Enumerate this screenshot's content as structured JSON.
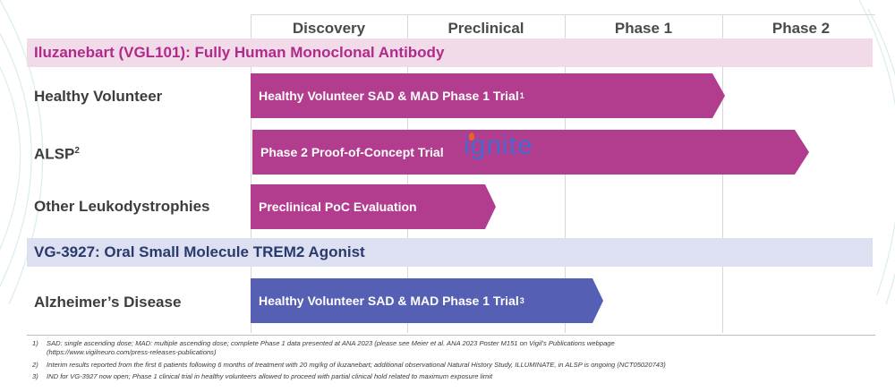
{
  "phases": [
    "Discovery",
    "Preclinical",
    "Phase 1",
    "Phase 2"
  ],
  "sections": [
    {
      "title": "Iluzanebart (VGL101): Fully Human Monoclonal Antibody",
      "rows": [
        {
          "label": "Healthy Volunteer",
          "label_sup": "",
          "bar_text": "Healthy Volunteer SAD & MAD Phase 1 Trial",
          "bar_sup": "1"
        },
        {
          "label": "ALSP",
          "label_sup": "2",
          "bar_text": "Phase 2 Proof-of-Concept Trial",
          "bar_sup": ""
        },
        {
          "label": "Other Leukodystrophies",
          "label_sup": "",
          "bar_text": "Preclinical PoC Evaluation",
          "bar_sup": ""
        }
      ]
    },
    {
      "title": "VG-3927: Oral Small Molecule TREM2 Agonist",
      "rows": [
        {
          "label": "Alzheimer’s Disease",
          "label_sup": "",
          "bar_text": "Healthy Volunteer SAD & MAD Phase 1 Trial",
          "bar_sup": "3"
        }
      ]
    }
  ],
  "ignite_logo": "ignite",
  "footnotes": [
    {
      "num": "1)",
      "line1": "SAD: single ascending dose; MAD: multiple ascending dose; complete Phase 1 data presented at ANA 2023 (please see Meier et al. ANA 2023 Poster M151 on Vigil’s Publications webpage",
      "line2": "(https://www.vigilneuro.com/press-releases-publications)"
    },
    {
      "num": "2)",
      "line1": "Interim results reported from the first 6 patients following 6 months of treatment with 20 mg/kg of iluzanebart; additional observational Natural History Study, ILLUMINATE, in ALSP is ongoing (NCT05020743)",
      "line2": ""
    },
    {
      "num": "3)",
      "line1": "IND for VG-3927 now open; Phase 1 clinical trial in healthy volunteers allowed to proceed with partial clinical hold related to maximum exposure limit",
      "line2": ""
    }
  ],
  "colors": {
    "magenta_bar": "#b23c8e",
    "blue_bar": "#5560b5",
    "band_pink": "#f2dbe8",
    "band_blue": "#dde0f0",
    "section_title_pink": "#b02a8a",
    "section_title_blue": "#2a3a6e"
  }
}
